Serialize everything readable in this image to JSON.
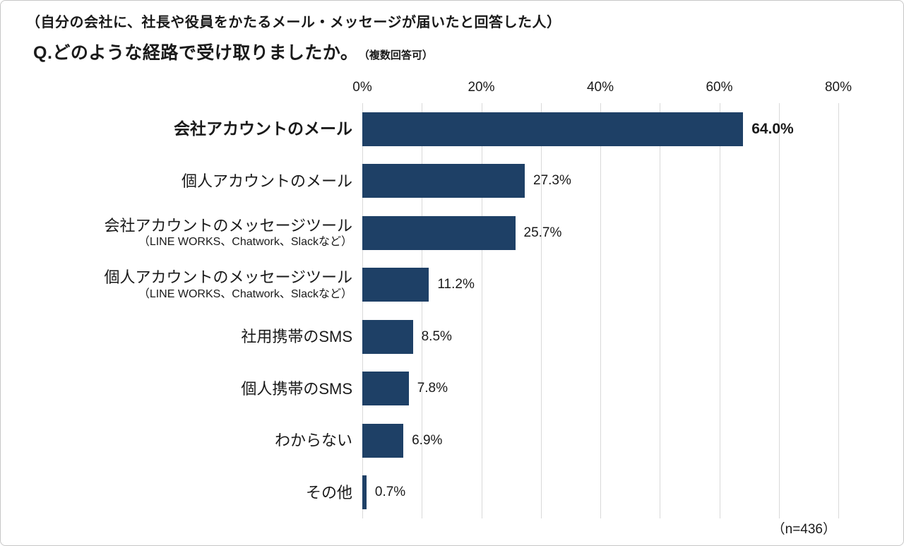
{
  "chart_data": {
    "type": "bar",
    "orientation": "horizontal",
    "note": "（自分の会社に、社長や役員をかたるメール・メッセージが届いたと回答した人）",
    "title": "Q.どのような経路で受け取りましたか。",
    "title_suffix": "（複数回答可）",
    "categories": [
      "会社アカウントのメール",
      "個人アカウントのメール",
      "会社アカウントのメッセージツール",
      "個人アカウントのメッセージツール",
      "社用携帯のSMS",
      "個人携帯のSMS",
      "わからない",
      "その他"
    ],
    "sublabels": [
      "",
      "",
      "（LINE WORKS、Chatwork、Slackなど）",
      "（LINE WORKS、Chatwork、Slackなど）",
      "",
      "",
      "",
      ""
    ],
    "values": [
      64.0,
      27.3,
      25.7,
      11.2,
      8.5,
      7.8,
      6.9,
      0.7
    ],
    "value_labels": [
      "64.0%",
      "27.3%",
      "25.7%",
      "11.2%",
      "8.5%",
      "7.8%",
      "6.9%",
      "0.7%"
    ],
    "emphasized_index": 0,
    "xlabel": "",
    "ylabel": "",
    "xlim": [
      0,
      80
    ],
    "x_ticks": [
      {
        "pct": 0,
        "label": "0%"
      },
      {
        "pct": 20,
        "label": "20%"
      },
      {
        "pct": 40,
        "label": "40%"
      },
      {
        "pct": 60,
        "label": "60%"
      },
      {
        "pct": 80,
        "label": "80%"
      }
    ],
    "gridline_pcts": [
      0,
      10,
      20,
      30,
      40,
      50,
      60,
      70,
      80
    ],
    "grid": "on",
    "legend": "none",
    "sample_size": "（n=436）",
    "colors": {
      "bar": "#1e4066",
      "gridline": "#d9d9d9",
      "text": "#1a1a1a"
    }
  }
}
